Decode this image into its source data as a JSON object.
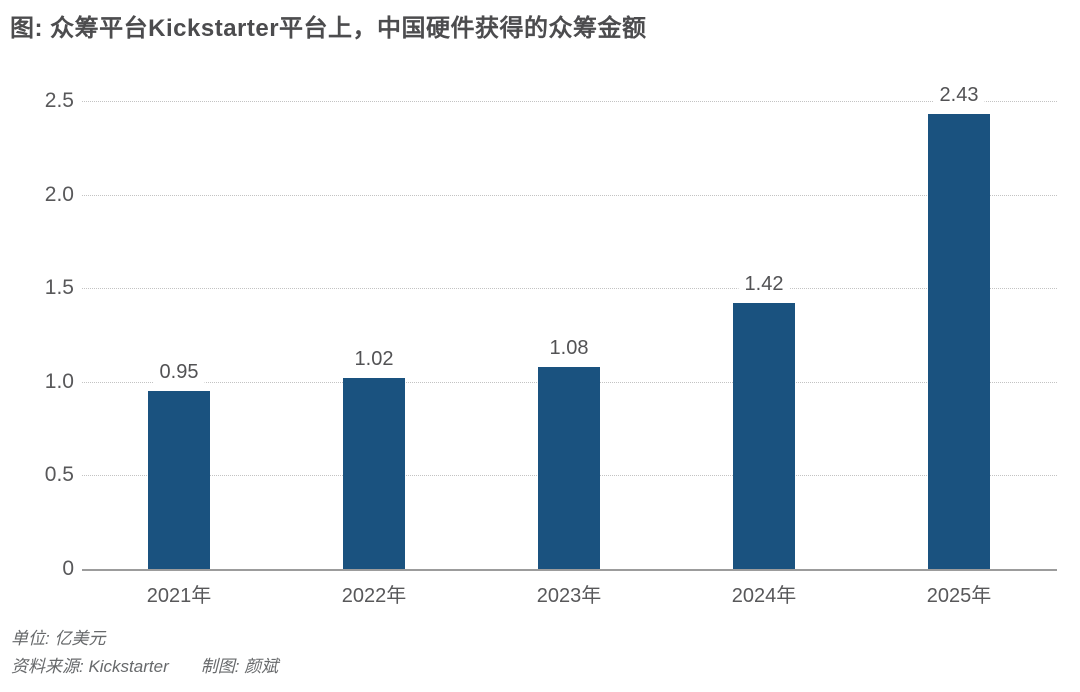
{
  "title": "图: 众筹平台Kickstarter平台上，中国硬件获得的众筹金额",
  "footer": {
    "unit": "单位: 亿美元",
    "source": "资料来源: Kickstarter",
    "author": "制图: 颜斌"
  },
  "colors": {
    "bar": "#1a527f",
    "gridline": "#c3c3c3",
    "axis": "#9c9c9c",
    "title_text": "#4c4c4e",
    "label_text": "#58585a"
  },
  "chart_data": {
    "type": "bar",
    "title": "图: 众筹平台Kickstarter平台上，中国硬件获得的众筹金额",
    "categories": [
      "2021年",
      "2022年",
      "2023年",
      "2024年",
      "2025年"
    ],
    "values": [
      0.95,
      1.02,
      1.08,
      1.42,
      2.43
    ],
    "value_labels": [
      "0.95",
      "1.02",
      "1.08",
      "1.42",
      "2.43"
    ],
    "xlabel": "",
    "ylabel": "亿美元",
    "ylim": [
      0,
      2.5
    ],
    "yticks": [
      0,
      0.5,
      1.0,
      1.5,
      2.0,
      2.5
    ],
    "ytick_labels": [
      "0",
      "0.5",
      "1.0",
      "1.5",
      "2.0",
      "2.5"
    ],
    "grid": "horizontal-dotted",
    "legend": "none",
    "bar_color": "#1a527f"
  }
}
